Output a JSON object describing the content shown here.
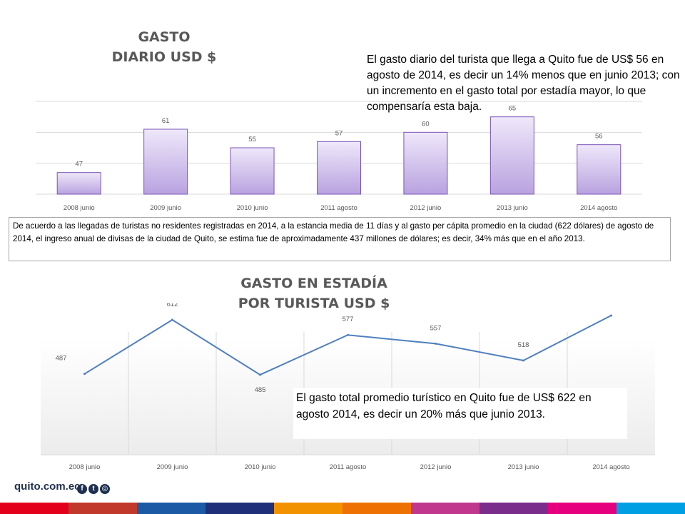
{
  "titles": {
    "chart1_line1": "GASTO",
    "chart1_line2": "DIARIO USD $",
    "chart2_line1": "GASTO EN ESTADÍA",
    "chart2_line2": "POR TURISTA USD $"
  },
  "notes": {
    "daily": "El gasto diario del turista que llega a Quito fue de US$ 56 en agosto de 2014, es decir un 14% menos que en junio 2013; con un incremento en el gasto total por estadía mayor, lo que compensaría esta baja.",
    "annual": "De acuerdo a las llegadas de turistas no residentes registradas en 2014, a la estancia media de 11 días y al gasto per cápita promedio en la ciudad (622 dólares) de agosto de 2014, el ingreso anual de divisas de la ciudad de Quito, se estima fue de aproximadamente 437 millones de dólares; es decir, 34% más que en el año 2013.",
    "total": "El gasto total promedio turístico en Quito fue de US$ 622 en agosto 2014, es decir un 20% más que junio 2013."
  },
  "footer": {
    "brand": "quito.com.ec",
    "social": [
      "f",
      "t",
      "◎"
    ],
    "stripe_colors": [
      "#e2001a",
      "#c0392b",
      "#1c5aa6",
      "#1f2f7a",
      "#f39200",
      "#ee7203",
      "#c2378e",
      "#7b2d8b",
      "#e6007e",
      "#009fe3"
    ]
  },
  "colors": {
    "bar_fill_top": "#efe8fa",
    "bar_fill_bottom": "#b9a2e0",
    "bar_stroke": "#7a55b8",
    "line": "#4f7fbf",
    "gridline": "#d9d9d9",
    "label": "#595959"
  },
  "chart_data": [
    {
      "type": "bar",
      "title": "GASTO DIARIO USD $",
      "categories": [
        "2008 junio",
        "2009 junio",
        "2010 junio",
        "2011 agosto",
        "2012 junio",
        "2013 junio",
        "2014 agosto"
      ],
      "values": [
        47,
        61,
        55,
        57,
        60,
        65,
        56
      ],
      "ylim": [
        40,
        70
      ],
      "grid": true
    },
    {
      "type": "line",
      "title": "GASTO EN ESTADÍA POR TURISTA USD $",
      "categories": [
        "2008 junio",
        "2009 junio",
        "2010 junio",
        "2011 agosto",
        "2012 junio",
        "2013 junio",
        "2014 agosto"
      ],
      "values": [
        487,
        612,
        485,
        577,
        557,
        518,
        622
      ],
      "ylim": [
        300,
        650
      ],
      "grid": true
    }
  ]
}
